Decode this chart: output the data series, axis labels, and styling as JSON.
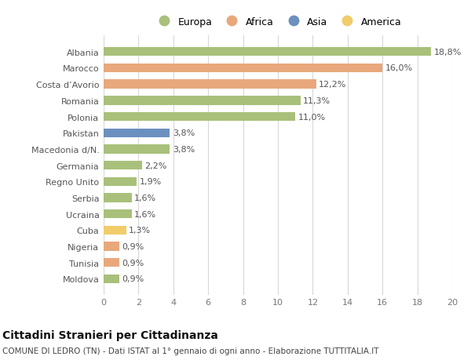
{
  "categories": [
    "Moldova",
    "Tunisia",
    "Nigeria",
    "Cuba",
    "Ucraina",
    "Serbia",
    "Regno Unito",
    "Germania",
    "Macedonia d/N.",
    "Pakistan",
    "Polonia",
    "Romania",
    "Costa d’Avorio",
    "Marocco",
    "Albania"
  ],
  "values": [
    0.9,
    0.9,
    0.9,
    1.3,
    1.6,
    1.6,
    1.9,
    2.2,
    3.8,
    3.8,
    11.0,
    11.3,
    12.2,
    16.0,
    18.8
  ],
  "continents": [
    "Europa",
    "Africa",
    "Africa",
    "America",
    "Europa",
    "Europa",
    "Europa",
    "Europa",
    "Europa",
    "Asia",
    "Europa",
    "Europa",
    "Africa",
    "Africa",
    "Europa"
  ],
  "colors": {
    "Europa": "#a8c07a",
    "Africa": "#e8a87c",
    "Asia": "#6b90bf",
    "America": "#f0cc6a"
  },
  "legend_order": [
    "Europa",
    "Africa",
    "Asia",
    "America"
  ],
  "title": "Cittadini Stranieri per Cittadinanza",
  "subtitle": "COMUNE DI LEDRO (TN) - Dati ISTAT al 1° gennaio di ogni anno - Elaborazione TUTTITALIA.IT",
  "xlim": [
    0,
    20
  ],
  "xticks": [
    0,
    2,
    4,
    6,
    8,
    10,
    12,
    14,
    16,
    18,
    20
  ],
  "bg_color": "#ffffff",
  "grid_color": "#d8d8d8",
  "bar_height": 0.55,
  "label_fontsize": 8,
  "title_fontsize": 10,
  "subtitle_fontsize": 7.5,
  "legend_fontsize": 9,
  "tick_fontsize": 8,
  "ytick_fontsize": 8
}
